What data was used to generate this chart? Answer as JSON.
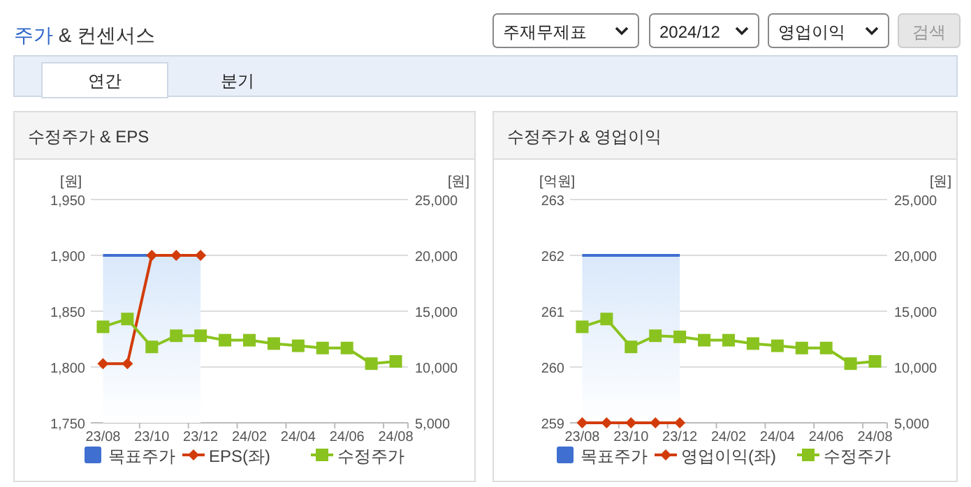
{
  "chart_data": [
    {
      "type": "other",
      "title": "주가 & 컨센서스",
      "annotations": [
        "주재무제표",
        "2024/12",
        "영업이익",
        "검색",
        "연간",
        "분기"
      ]
    },
    {
      "type": "line",
      "title": "수정주가 & EPS",
      "ylabel": "[원]",
      "y2label": "[원]",
      "categories": [
        "23/08",
        null,
        "23/10",
        null,
        "23/12",
        null,
        "24/02",
        null,
        "24/04",
        null,
        "24/06",
        null,
        "24/08"
      ],
      "series": [
        {
          "name": "목표주가",
          "type": "area",
          "axis": "y2",
          "color": "#3f6fd0",
          "values": [
            20000,
            20000,
            20000,
            20000,
            20000,
            null,
            null,
            null,
            null,
            null,
            null,
            null,
            null
          ]
        },
        {
          "name": "EPS(좌)",
          "type": "line",
          "marker": "diamond",
          "color": "#d23c0a",
          "values": [
            1803,
            1803,
            1900,
            1900,
            1900,
            null,
            null,
            null,
            null,
            null,
            null,
            null,
            null
          ]
        },
        {
          "name": "수정주가",
          "type": "line",
          "axis": "y2",
          "marker": "square",
          "color": "#8ac31f",
          "values": [
            13600,
            14300,
            11800,
            12800,
            12800,
            12400,
            12400,
            12100,
            11900,
            11700,
            11700,
            10300,
            10500
          ]
        }
      ],
      "ylim": [
        1750,
        1950
      ],
      "yticks": [
        {
          "value": 1750,
          "label": "1,750"
        },
        {
          "value": 1800,
          "label": "1,800"
        },
        {
          "value": 1850,
          "label": "1,850"
        },
        {
          "value": 1900,
          "label": "1,900"
        },
        {
          "value": 1950,
          "label": "1,950"
        }
      ],
      "y2lim": [
        5000,
        25000
      ],
      "y2ticks": [
        {
          "value": 5000,
          "label": "5,000"
        },
        {
          "value": 10000,
          "label": "10,000"
        },
        {
          "value": 15000,
          "label": "15,000"
        },
        {
          "value": 20000,
          "label": "20,000"
        },
        {
          "value": 25000,
          "label": "25,000"
        }
      ],
      "grid": "y",
      "legend": "bottom"
    },
    {
      "type": "line",
      "title": "수정주가 & 영업이익",
      "ylabel": "[억원]",
      "y2label": "[원]",
      "categories": [
        "23/08",
        null,
        "23/10",
        null,
        "23/12",
        null,
        "24/02",
        null,
        "24/04",
        null,
        "24/06",
        null,
        "24/08"
      ],
      "series": [
        {
          "name": "목표주가",
          "type": "area",
          "axis": "y2",
          "color": "#3f6fd0",
          "values": [
            20000,
            20000,
            20000,
            20000,
            20000,
            null,
            null,
            null,
            null,
            null,
            null,
            null,
            null
          ]
        },
        {
          "name": "영업이익(좌)",
          "type": "line",
          "marker": "diamond",
          "color": "#d23c0a",
          "values": [
            259,
            259,
            259,
            259,
            259,
            null,
            null,
            null,
            null,
            null,
            null,
            null,
            null
          ]
        },
        {
          "name": "수정주가",
          "type": "line",
          "axis": "y2",
          "marker": "square",
          "color": "#8ac31f",
          "values": [
            13600,
            14300,
            11800,
            12800,
            12700,
            12400,
            12400,
            12100,
            11900,
            11700,
            11700,
            10300,
            10500
          ]
        }
      ],
      "ylim": [
        259,
        263
      ],
      "yticks": [
        259,
        260,
        261,
        262,
        263
      ],
      "y2lim": [
        5000,
        25000
      ],
      "y2ticks": [
        {
          "value": 5000,
          "label": "5,000"
        },
        {
          "value": 10000,
          "label": "10,000"
        },
        {
          "value": 15000,
          "label": "15,000"
        },
        {
          "value": 20000,
          "label": "20,000"
        },
        {
          "value": 25000,
          "label": "25,000"
        }
      ],
      "grid": "y",
      "legend": "bottom"
    }
  ]
}
